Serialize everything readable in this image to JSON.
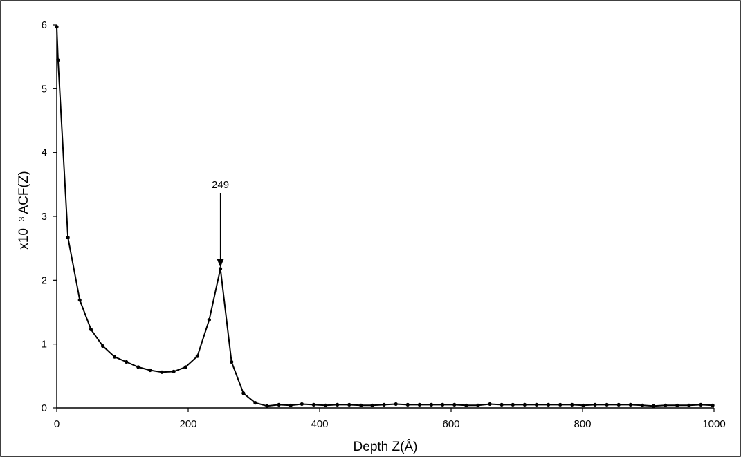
{
  "chart_data": {
    "type": "line",
    "xlabel": "Depth  Z(Å)",
    "ylabel": "x10⁻³ ACF(Z)",
    "xlim": [
      0,
      1000
    ],
    "ylim": [
      0,
      6
    ],
    "x_ticks": [
      "0",
      "200",
      "400",
      "600",
      "800",
      "1000"
    ],
    "y_ticks": [
      "0",
      "1",
      "2",
      "3",
      "4",
      "5",
      "6"
    ],
    "grid": false,
    "legend": "none",
    "annotation": {
      "text": "249",
      "x": 249,
      "y": 2.18
    },
    "series": [
      {
        "x": [
          0,
          2,
          17,
          35,
          52,
          70,
          88,
          106,
          124,
          142,
          160,
          178,
          196,
          214,
          232,
          249,
          266,
          284,
          302,
          320,
          338,
          356,
          373,
          391,
          409,
          427,
          445,
          463,
          480,
          498,
          516,
          534,
          552,
          570,
          587,
          605,
          623,
          641,
          659,
          677,
          694,
          712,
          730,
          748,
          766,
          784,
          801,
          819,
          837,
          855,
          873,
          891,
          908,
          926,
          944,
          962,
          980,
          998
        ],
        "values": [
          5.97,
          5.45,
          2.67,
          1.69,
          1.23,
          0.97,
          0.8,
          0.72,
          0.64,
          0.59,
          0.56,
          0.57,
          0.64,
          0.81,
          1.38,
          2.18,
          0.72,
          0.23,
          0.08,
          0.03,
          0.05,
          0.04,
          0.06,
          0.05,
          0.04,
          0.05,
          0.05,
          0.04,
          0.04,
          0.05,
          0.06,
          0.05,
          0.05,
          0.05,
          0.05,
          0.05,
          0.04,
          0.04,
          0.06,
          0.05,
          0.05,
          0.05,
          0.05,
          0.05,
          0.05,
          0.05,
          0.04,
          0.05,
          0.05,
          0.05,
          0.05,
          0.04,
          0.03,
          0.04,
          0.04,
          0.04,
          0.05,
          0.04
        ]
      }
    ]
  }
}
